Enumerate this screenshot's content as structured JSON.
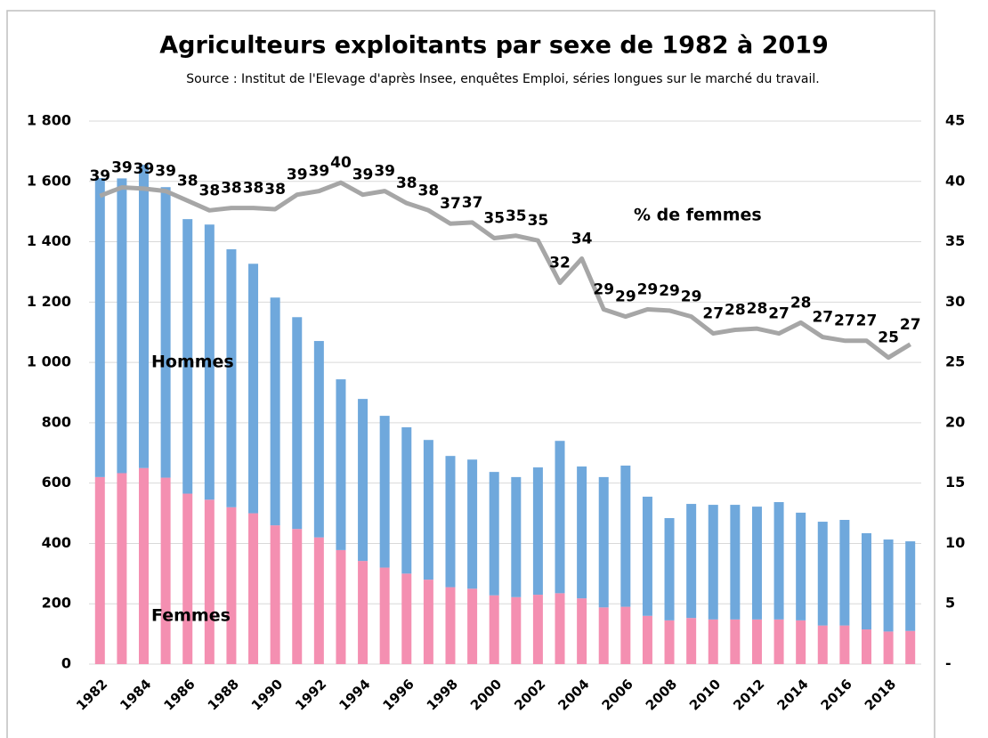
{
  "chart_data": {
    "type": "bar",
    "title": "Agriculteurs exploitants par sexe de 1982 à 2019",
    "subtitle": "Source : Institut de l'Elevage d'après Insee, enquêtes Emploi, séries longues sur le marché du travail.",
    "categories": [
      "1982",
      null,
      "1984",
      null,
      "1986",
      null,
      "1988",
      null,
      "1990",
      null,
      "1992",
      null,
      "1994",
      null,
      "1996",
      null,
      "1998",
      null,
      "2000",
      null,
      "2002",
      null,
      "2004",
      null,
      "2006",
      null,
      "2008",
      null,
      "2010",
      null,
      "2012",
      null,
      "2014",
      null,
      "2016",
      null,
      "2018",
      null
    ],
    "stacked": true,
    "series": [
      {
        "name": "Femmes",
        "color": "#f48fb1",
        "values": [
          620,
          633,
          650,
          618,
          565,
          545,
          520,
          500,
          460,
          448,
          420,
          378,
          342,
          320,
          300,
          280,
          255,
          250,
          228,
          222,
          230,
          235,
          218,
          188,
          190,
          160,
          145,
          153,
          148,
          148,
          148,
          148,
          145,
          128,
          128,
          115,
          108,
          110
        ]
      },
      {
        "name": "Hommes",
        "color": "#6fa8dc",
        "values": [
          991,
          977,
          1005,
          963,
          910,
          912,
          855,
          827,
          755,
          702,
          651,
          566,
          537,
          503,
          485,
          463,
          435,
          428,
          409,
          398,
          422,
          505,
          437,
          432,
          468,
          395,
          339,
          378,
          380,
          380,
          374,
          389,
          357,
          344,
          350,
          319,
          305,
          297
        ]
      },
      {
        "name": "% de femmes",
        "type": "line",
        "axis": "y2",
        "color": "#a6a6a6",
        "values": [
          38.8,
          39.5,
          39.4,
          39.2,
          38.4,
          37.6,
          37.8,
          37.8,
          37.7,
          38.9,
          39.2,
          39.9,
          38.9,
          39.2,
          38.2,
          37.6,
          36.5,
          36.6,
          35.3,
          35.5,
          35.1,
          31.6,
          33.6,
          29.4,
          28.8,
          29.4,
          29.3,
          28.8,
          27.4,
          27.7,
          27.8,
          27.4,
          28.3,
          27.1,
          26.8,
          26.8,
          25.4,
          26.5
        ],
        "value_labels": [
          "39",
          "39",
          "39",
          "39",
          "38",
          "38",
          "38",
          "38",
          "38",
          "39",
          "39",
          "40",
          "39",
          "39",
          "38",
          "38",
          "37",
          "37",
          "35",
          "35",
          "35",
          "32",
          "34",
          "29",
          "29",
          "29",
          "29",
          "29",
          "27",
          "28",
          "28",
          "27",
          "28",
          "27",
          "27",
          "27",
          "25",
          "27"
        ]
      }
    ],
    "ylim": [
      0,
      1800
    ],
    "yticks": [
      0,
      200,
      400,
      600,
      800,
      {
        "value": 1000,
        "label": "1 000"
      },
      {
        "value": 1200,
        "label": "1 200"
      },
      {
        "value": 1400,
        "label": "1 400"
      },
      {
        "value": 1600,
        "label": "1 600"
      },
      {
        "value": 1800,
        "label": "1 800"
      }
    ],
    "y2lim": [
      0,
      45
    ],
    "y2ticks": [
      {
        "value": 0,
        "label": "-"
      },
      5,
      10,
      15,
      20,
      25,
      30,
      35,
      40,
      45
    ],
    "grid": true
  }
}
